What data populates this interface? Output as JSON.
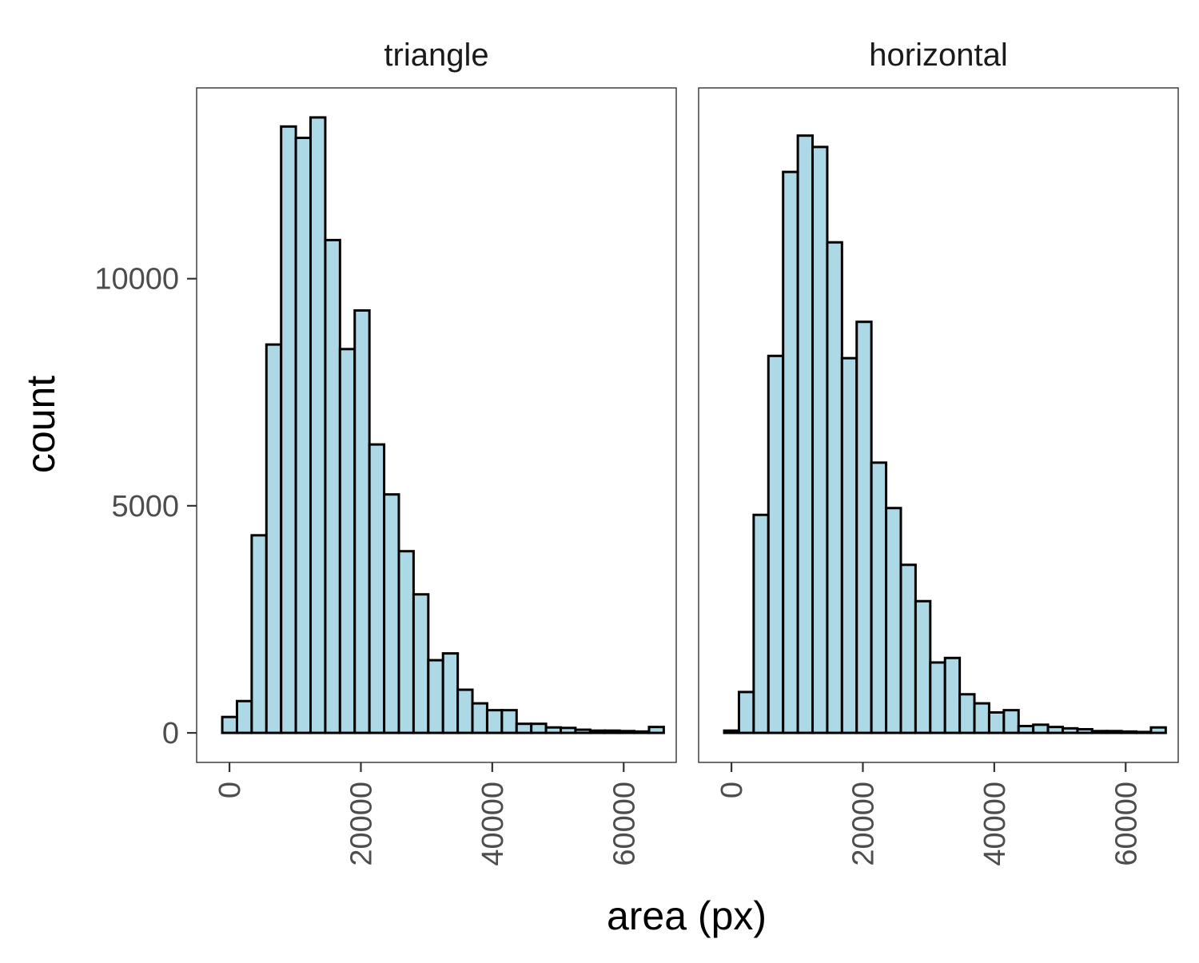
{
  "chart_data": {
    "type": "bar",
    "subtype": "histogram-faceted",
    "xlabel": "area (px)",
    "ylabel": "count",
    "xlim": [
      -5000,
      68000
    ],
    "ylim": [
      -650,
      14200
    ],
    "x_ticks": [
      0,
      20000,
      40000,
      60000
    ],
    "y_ticks": [
      0,
      5000,
      10000
    ],
    "x_tick_labels": [
      "0",
      "20000",
      "40000",
      "60000"
    ],
    "y_tick_labels": [
      "0",
      "5000",
      "10000"
    ],
    "grid": false,
    "legend": "none",
    "bin_width": 2240,
    "bins": [
      -1100,
      1140,
      3380,
      5620,
      7860,
      10100,
      12340,
      14580,
      16820,
      19060,
      21300,
      23540,
      25780,
      28020,
      30260,
      32500,
      34740,
      36980,
      39220,
      41460,
      43700,
      45940,
      48180,
      50420,
      52660,
      54900,
      57140,
      59380,
      61620,
      63860
    ],
    "colors": {
      "bar_fill": "#add8e6",
      "bar_outline": "#000000",
      "panel_border": "#4d4d4d",
      "axis_text": "#4d4d4d"
    },
    "panels": [
      {
        "name": "triangle",
        "values": [
          350,
          700,
          4350,
          8550,
          13350,
          13100,
          13550,
          10850,
          8450,
          9300,
          6350,
          5250,
          4000,
          3050,
          1600,
          1750,
          950,
          650,
          500,
          500,
          200,
          200,
          120,
          110,
          70,
          50,
          50,
          40,
          30,
          130
        ]
      },
      {
        "name": "horizontal",
        "values": [
          50,
          900,
          4800,
          8300,
          12350,
          13150,
          12900,
          10800,
          8250,
          9050,
          5950,
          4950,
          3700,
          2900,
          1550,
          1650,
          850,
          650,
          450,
          500,
          150,
          180,
          130,
          100,
          80,
          40,
          40,
          30,
          20,
          120
        ]
      }
    ]
  }
}
